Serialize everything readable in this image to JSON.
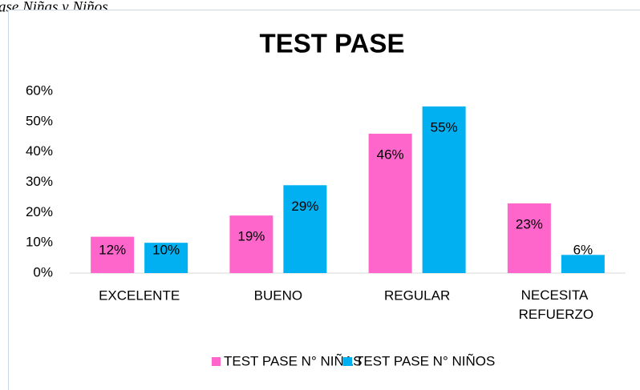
{
  "caption": "ase Niñas y Niños",
  "chart_data": {
    "type": "bar",
    "title": "TEST PASE",
    "categories": [
      "EXCELENTE",
      "BUENO",
      "REGULAR",
      "NECESITA REFUERZO"
    ],
    "series": [
      {
        "name": "TEST PASE N° NIÑAS",
        "color": "#ff66cc",
        "values": [
          12,
          19,
          46,
          23
        ],
        "value_labels": [
          "12%",
          "19%",
          "46%",
          "23%"
        ]
      },
      {
        "name": "TEST PASE N° NIÑOS",
        "color": "#00b0f0",
        "values": [
          10,
          29,
          55,
          6
        ],
        "value_labels": [
          "10%",
          "29%",
          "55%",
          "6%"
        ]
      }
    ],
    "ylim": [
      0,
      60
    ],
    "yticks": [
      {
        "value": 0,
        "label": "0%"
      },
      {
        "value": 10,
        "label": "10%"
      },
      {
        "value": 20,
        "label": "20%"
      },
      {
        "value": 30,
        "label": "30%"
      },
      {
        "value": 40,
        "label": "40%"
      },
      {
        "value": 50,
        "label": "50%"
      },
      {
        "value": 60,
        "label": "60%"
      }
    ],
    "grid": false,
    "legend": "bottom"
  }
}
